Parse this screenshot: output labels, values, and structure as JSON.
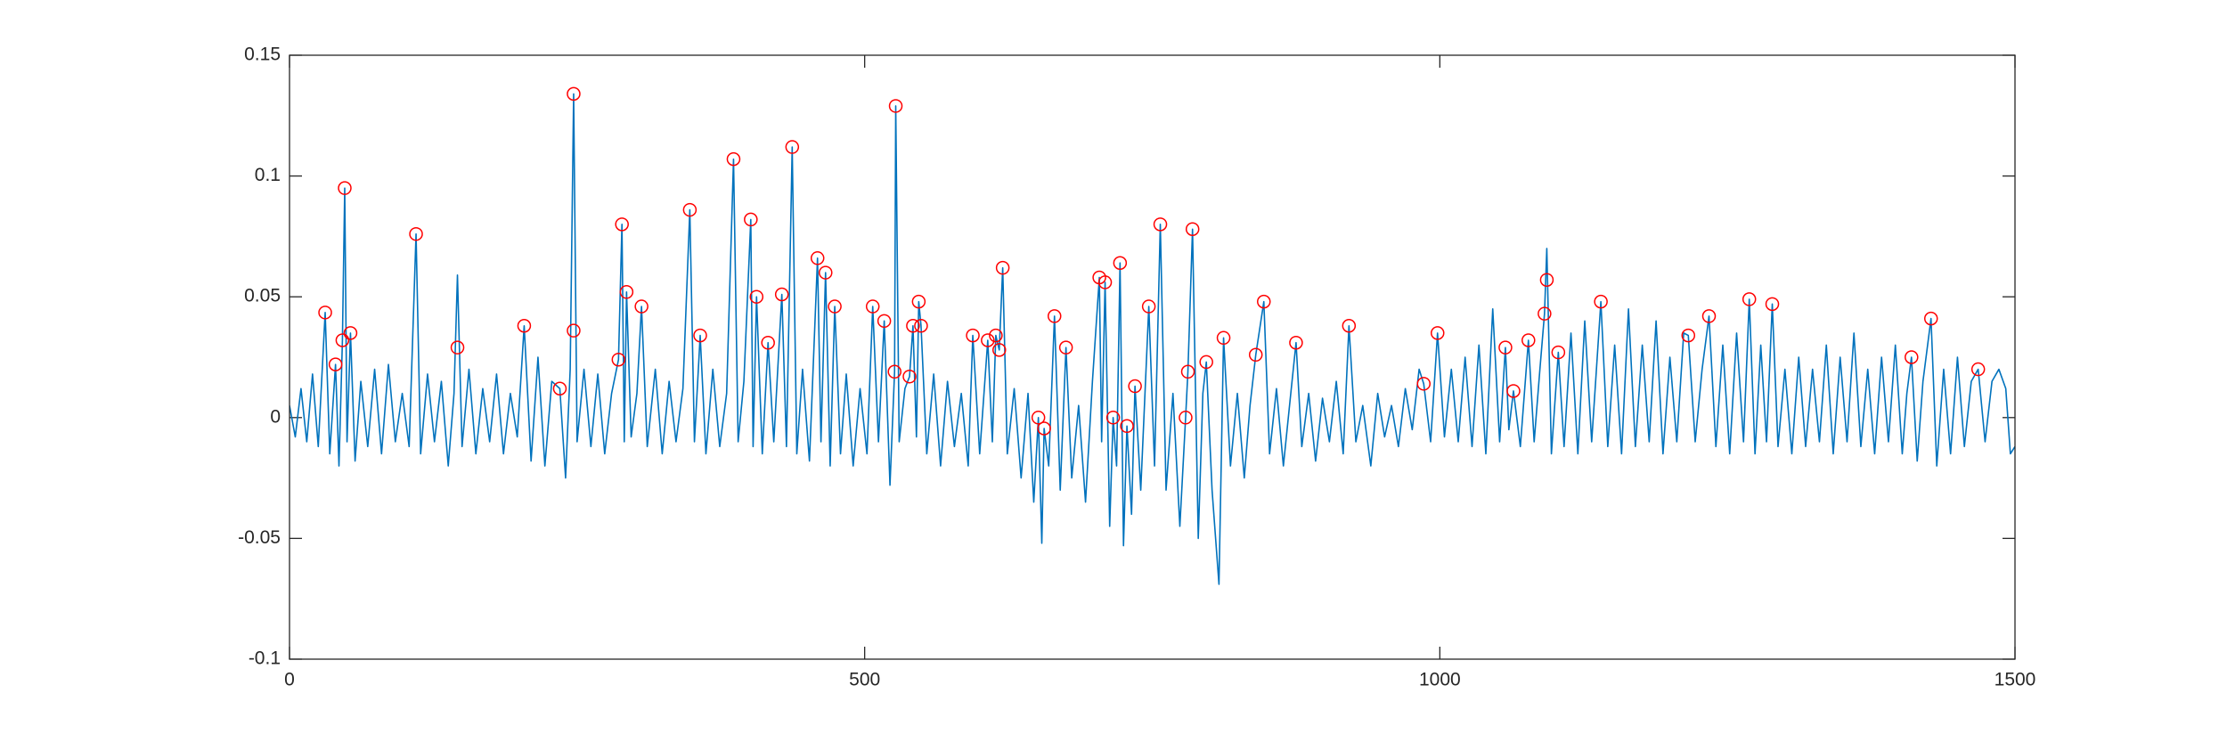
{
  "chart_data": {
    "type": "line",
    "xlim": [
      0,
      1500
    ],
    "xticks": [
      0,
      500,
      1000,
      1500
    ],
    "ylim": [
      -0.1,
      0.15
    ],
    "yticks": [
      -0.1,
      -0.05,
      0,
      0.05,
      0.1,
      0.15
    ],
    "grid": false,
    "box": true,
    "series": [
      {
        "style": "line",
        "color": "#0072bd",
        "x": [
          0,
          5,
          10,
          15,
          20,
          25,
          31,
          35,
          40,
          43,
          46,
          48,
          50,
          53,
          57,
          62,
          68,
          74,
          80,
          86,
          92,
          98,
          104,
          110,
          114,
          120,
          126,
          132,
          138,
          143,
          146,
          150,
          156,
          162,
          168,
          174,
          180,
          186,
          192,
          198,
          204,
          210,
          216,
          222,
          228,
          235,
          240,
          244,
          247,
          250,
          256,
          262,
          268,
          274,
          280,
          286,
          289,
          291,
          293,
          297,
          302,
          306,
          311,
          318,
          324,
          330,
          336,
          342,
          348,
          352,
          357,
          362,
          368,
          374,
          380,
          386,
          390,
          395,
          401,
          403,
          406,
          411,
          416,
          421,
          428,
          432,
          437,
          441,
          446,
          452,
          459,
          462,
          466,
          470,
          474,
          479,
          484,
          490,
          496,
          502,
          507,
          512,
          517,
          522,
          526,
          527,
          530,
          535,
          539,
          542,
          545,
          547,
          549,
          554,
          560,
          566,
          572,
          578,
          584,
          590,
          594,
          600,
          607,
          611,
          614,
          617,
          620,
          624,
          630,
          636,
          642,
          647,
          651,
          654,
          656,
          660,
          665,
          670,
          675,
          680,
          686,
          692,
          698,
          704,
          706,
          709,
          713,
          716,
          719,
          722,
          725,
          728,
          732,
          735,
          740,
          747,
          752,
          757,
          762,
          768,
          774,
          779,
          781,
          785,
          790,
          794,
          797,
          802,
          808,
          812,
          818,
          824,
          830,
          835,
          840,
          847,
          852,
          858,
          864,
          870,
          875,
          880,
          886,
          892,
          898,
          904,
          910,
          916,
          921,
          927,
          933,
          940,
          946,
          952,
          958,
          964,
          970,
          976,
          982,
          986,
          992,
          998,
          1004,
          1010,
          1016,
          1022,
          1028,
          1034,
          1040,
          1046,
          1052,
          1057,
          1060,
          1064,
          1070,
          1077,
          1082,
          1087,
          1091,
          1093,
          1097,
          1103,
          1108,
          1114,
          1120,
          1126,
          1132,
          1140,
          1146,
          1152,
          1158,
          1164,
          1170,
          1176,
          1182,
          1188,
          1194,
          1200,
          1206,
          1212,
          1216,
          1222,
          1228,
          1234,
          1240,
          1246,
          1252,
          1258,
          1264,
          1269,
          1274,
          1279,
          1284,
          1289,
          1294,
          1300,
          1306,
          1312,
          1318,
          1324,
          1330,
          1336,
          1342,
          1348,
          1354,
          1360,
          1366,
          1372,
          1378,
          1384,
          1390,
          1396,
          1402,
          1406,
          1410,
          1415,
          1420,
          1427,
          1432,
          1438,
          1444,
          1450,
          1456,
          1462,
          1468,
          1474,
          1480,
          1486,
          1492,
          1496,
          1500
        ],
        "values": [
          0.005,
          -0.008,
          0.012,
          -0.01,
          0.018,
          -0.012,
          0.0435,
          -0.015,
          0.022,
          -0.02,
          0.032,
          0.095,
          -0.01,
          0.035,
          -0.018,
          0.015,
          -0.012,
          0.02,
          -0.015,
          0.022,
          -0.01,
          0.01,
          -0.012,
          0.076,
          -0.015,
          0.018,
          -0.01,
          0.015,
          -0.02,
          0.01,
          0.059,
          -0.012,
          0.02,
          -0.015,
          0.012,
          -0.01,
          0.018,
          -0.015,
          0.01,
          -0.008,
          0.038,
          -0.018,
          0.025,
          -0.02,
          0.015,
          0.012,
          -0.025,
          0.02,
          0.134,
          -0.01,
          0.02,
          -0.012,
          0.018,
          -0.015,
          0.01,
          0.024,
          0.08,
          -0.01,
          0.052,
          -0.008,
          0.01,
          0.046,
          -0.012,
          0.02,
          -0.015,
          0.015,
          -0.01,
          0.012,
          0.086,
          -0.01,
          0.034,
          -0.015,
          0.02,
          -0.012,
          0.01,
          0.107,
          -0.01,
          0.015,
          0.082,
          -0.012,
          0.05,
          -0.015,
          0.031,
          -0.01,
          0.051,
          -0.012,
          0.112,
          -0.015,
          0.02,
          -0.018,
          0.066,
          -0.01,
          0.06,
          -0.02,
          0.046,
          -0.015,
          0.018,
          -0.02,
          0.012,
          -0.015,
          0.046,
          -0.01,
          0.04,
          -0.028,
          0.019,
          0.129,
          -0.01,
          0.012,
          0.017,
          0.038,
          -0.008,
          0.048,
          0.038,
          -0.015,
          0.018,
          -0.02,
          0.015,
          -0.012,
          0.01,
          -0.02,
          0.034,
          -0.015,
          0.032,
          -0.01,
          0.034,
          0.028,
          0.062,
          -0.015,
          0.012,
          -0.025,
          0.01,
          -0.035,
          0.0,
          -0.052,
          -0.0045,
          -0.02,
          0.042,
          -0.03,
          0.029,
          -0.025,
          0.005,
          -0.035,
          0.015,
          0.058,
          -0.01,
          0.056,
          -0.045,
          0.0,
          -0.02,
          0.064,
          -0.053,
          -0.0035,
          -0.04,
          0.013,
          -0.03,
          0.046,
          -0.02,
          0.08,
          -0.03,
          0.01,
          -0.045,
          0.0,
          0.019,
          0.078,
          -0.05,
          0.01,
          0.023,
          -0.03,
          -0.069,
          0.033,
          -0.02,
          0.01,
          -0.025,
          0.005,
          0.026,
          0.048,
          -0.015,
          0.012,
          -0.02,
          0.008,
          0.031,
          -0.012,
          0.01,
          -0.018,
          0.008,
          -0.01,
          0.015,
          -0.015,
          0.038,
          -0.01,
          0.005,
          -0.02,
          0.01,
          -0.008,
          0.005,
          -0.012,
          0.012,
          -0.005,
          0.02,
          0.014,
          -0.01,
          0.035,
          -0.008,
          0.02,
          -0.01,
          0.025,
          -0.012,
          0.03,
          -0.015,
          0.045,
          -0.01,
          0.029,
          -0.005,
          0.011,
          -0.012,
          0.032,
          -0.01,
          0.02,
          0.043,
          0.07,
          -0.015,
          0.027,
          -0.012,
          0.035,
          -0.015,
          0.04,
          -0.01,
          0.048,
          -0.012,
          0.03,
          -0.015,
          0.045,
          -0.012,
          0.03,
          -0.01,
          0.04,
          -0.015,
          0.025,
          -0.01,
          0.035,
          0.034,
          -0.01,
          0.02,
          0.042,
          -0.012,
          0.03,
          -0.015,
          0.035,
          -0.01,
          0.049,
          -0.015,
          0.03,
          -0.01,
          0.047,
          -0.012,
          0.02,
          -0.015,
          0.025,
          -0.012,
          0.02,
          -0.01,
          0.03,
          -0.015,
          0.025,
          -0.01,
          0.035,
          -0.012,
          0.02,
          -0.015,
          0.025,
          -0.01,
          0.03,
          -0.015,
          0.01,
          0.025,
          -0.018,
          0.015,
          0.041,
          -0.02,
          0.02,
          -0.015,
          0.025,
          -0.012,
          0.015,
          0.02,
          -0.01,
          0.015,
          0.02,
          0.012,
          -0.015,
          -0.012
        ]
      },
      {
        "style": "markers",
        "color": "#ff0000",
        "x": [
          31,
          40,
          46,
          48,
          53,
          110,
          146,
          204,
          235,
          247,
          247,
          286,
          289,
          293,
          306,
          348,
          357,
          386,
          401,
          406,
          416,
          428,
          437,
          459,
          466,
          474,
          507,
          517,
          526,
          527,
          539,
          542,
          547,
          549,
          594,
          607,
          614,
          617,
          620,
          651,
          656,
          665,
          675,
          704,
          709,
          716,
          722,
          728,
          735,
          747,
          757,
          779,
          781,
          785,
          797,
          812,
          840,
          847,
          875,
          921,
          986,
          998,
          1057,
          1064,
          1077,
          1091,
          1093,
          1103,
          1140,
          1216,
          1234,
          1269,
          1289,
          1410,
          1427,
          1468
        ],
        "values": [
          0.0435,
          0.022,
          0.032,
          0.095,
          0.035,
          0.076,
          0.029,
          0.038,
          0.012,
          0.134,
          0.036,
          0.024,
          0.08,
          0.052,
          0.046,
          0.086,
          0.034,
          0.107,
          0.082,
          0.05,
          0.031,
          0.051,
          0.112,
          0.066,
          0.06,
          0.046,
          0.046,
          0.04,
          0.019,
          0.129,
          0.017,
          0.038,
          0.048,
          0.038,
          0.034,
          0.032,
          0.034,
          0.028,
          0.062,
          0.0,
          -0.0045,
          0.042,
          0.029,
          0.058,
          0.056,
          0.0,
          0.064,
          -0.0035,
          0.013,
          0.046,
          0.08,
          0.0,
          0.019,
          0.078,
          0.023,
          0.033,
          0.026,
          0.048,
          0.031,
          0.038,
          0.014,
          0.035,
          0.029,
          0.011,
          0.032,
          0.043,
          0.057,
          0.027,
          0.048,
          0.034,
          0.042,
          0.049,
          0.047,
          0.025,
          0.041,
          0.02
        ]
      }
    ]
  }
}
